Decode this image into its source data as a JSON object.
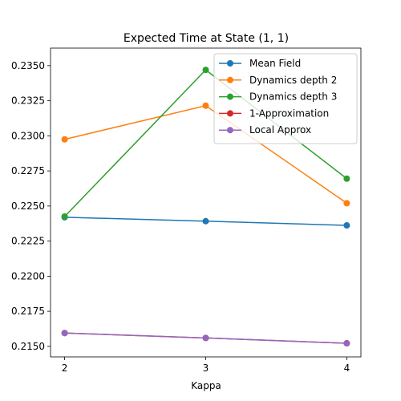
{
  "chart_data": {
    "type": "line",
    "title": "Expected Time at State (1, 1)",
    "xlabel": "Kappa",
    "ylabel": "",
    "x": [
      2,
      3,
      4
    ],
    "xlim": [
      1.9,
      4.1
    ],
    "ylim": [
      0.21425,
      0.23625
    ],
    "xticks": [
      2,
      3,
      4
    ],
    "yticks": [
      0.215,
      0.2175,
      0.22,
      0.2225,
      0.225,
      0.2275,
      0.23,
      0.2325,
      0.235
    ],
    "grid": false,
    "legend_position": "top-right",
    "series": [
      {
        "name": "Mean Field",
        "color": "#1f77b4",
        "values": [
          0.2242,
          0.22392,
          0.22362
        ]
      },
      {
        "name": "Dynamics depth 2",
        "color": "#ff7f0e",
        "values": [
          0.22975,
          0.23215,
          0.2252
        ]
      },
      {
        "name": "Dynamics depth 3",
        "color": "#2ca02c",
        "values": [
          0.22425,
          0.2347,
          0.22695
        ]
      },
      {
        "name": "1-Approximation",
        "color": "#d62728",
        "values": [
          0.21595,
          0.2156,
          0.21522
        ]
      },
      {
        "name": "Local Approx",
        "color": "#9467bd",
        "values": [
          0.21595,
          0.2156,
          0.21522
        ]
      }
    ]
  }
}
